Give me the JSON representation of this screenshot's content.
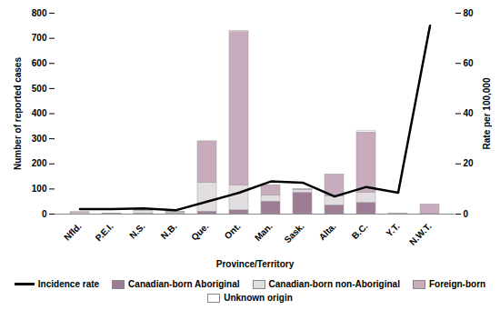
{
  "chart_data": {
    "type": "bar",
    "stacked": true,
    "xlabel": "Province/Territory",
    "ylabel": "Number of reported cases",
    "y2label": "Rate per 100,000",
    "categories": [
      "Nfld.",
      "P.E.I.",
      "N.S.",
      "N.B.",
      "Que.",
      "Ont.",
      "Man.",
      "Sask.",
      "Alta.",
      "B.C.",
      "Y.T.",
      "N.W.T."
    ],
    "ylim": [
      0,
      800
    ],
    "yticks": [
      0,
      100,
      200,
      300,
      400,
      500,
      600,
      700,
      800
    ],
    "y2lim": [
      0,
      80
    ],
    "y2ticks": [
      0,
      20,
      40,
      60,
      80
    ],
    "legend": "bottom",
    "series": [
      {
        "name": "Incidence rate",
        "type": "line",
        "axis": "y2",
        "color": "#000000",
        "values": [
          2,
          2,
          2.3,
          1.5,
          5,
          8.5,
          13,
          12.5,
          7,
          10.8,
          8.5,
          75
        ]
      },
      {
        "name": "Canadian-born Aboriginal",
        "type": "bar",
        "color": "#9e7c95",
        "values": [
          0,
          0,
          2,
          1,
          10,
          15,
          50,
          85,
          35,
          45,
          1,
          0
        ]
      },
      {
        "name": "Canadian-born non-Aboriginal",
        "type": "bar",
        "color": "#e2dde0",
        "values": [
          6,
          2,
          12,
          6,
          115,
          100,
          25,
          10,
          35,
          40,
          2,
          0
        ]
      },
      {
        "name": "Foreign-born",
        "type": "bar",
        "color": "#c9abbe",
        "values": [
          2,
          1,
          6,
          3,
          165,
          610,
          40,
          5,
          88,
          240,
          0,
          38
        ]
      },
      {
        "name": "Unknown origin",
        "type": "bar",
        "color": "#ffffff",
        "values": [
          0,
          0,
          0,
          0,
          0,
          5,
          0,
          0,
          0,
          5,
          0,
          0
        ]
      }
    ]
  }
}
